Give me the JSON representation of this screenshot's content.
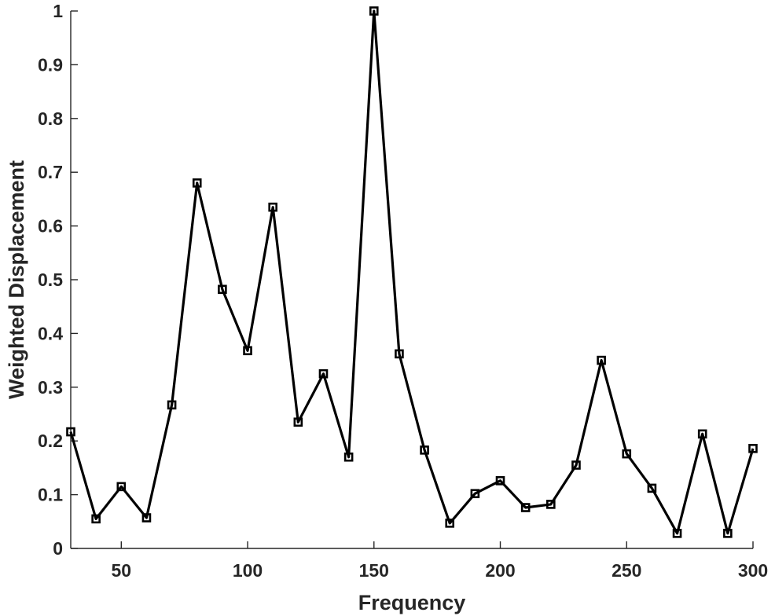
{
  "chart_data": {
    "type": "line",
    "title": "",
    "xlabel": "Frequency",
    "ylabel": "Weighted Displacement",
    "xlim": [
      30,
      300
    ],
    "ylim": [
      0,
      1
    ],
    "xticks": [
      50,
      100,
      150,
      200,
      250,
      300
    ],
    "xtick_labels": [
      "50",
      "100",
      "150",
      "200",
      "250",
      "300"
    ],
    "yticks": [
      0,
      0.1,
      0.2,
      0.3,
      0.4,
      0.5,
      0.6,
      0.7,
      0.8,
      0.9,
      1
    ],
    "ytick_labels": [
      "0",
      "0.1",
      "0.2",
      "0.3",
      "0.4",
      "0.5",
      "0.6",
      "0.7",
      "0.8",
      "0.9",
      "1"
    ],
    "grid": false,
    "marker": "square",
    "color": "#000000",
    "series": [
      {
        "x": [
          30,
          40,
          50,
          60,
          70,
          80,
          90,
          100,
          110,
          120,
          130,
          140,
          150,
          160,
          170,
          180,
          190,
          200,
          210,
          220,
          230,
          240,
          250,
          260,
          270,
          280,
          290,
          300
        ],
        "values": [
          0.217,
          0.055,
          0.115,
          0.057,
          0.267,
          0.68,
          0.482,
          0.368,
          0.635,
          0.235,
          0.325,
          0.17,
          1.0,
          0.362,
          0.183,
          0.047,
          0.102,
          0.126,
          0.076,
          0.082,
          0.155,
          0.35,
          0.176,
          0.112,
          0.028,
          0.213,
          0.028,
          0.186
        ]
      }
    ]
  }
}
